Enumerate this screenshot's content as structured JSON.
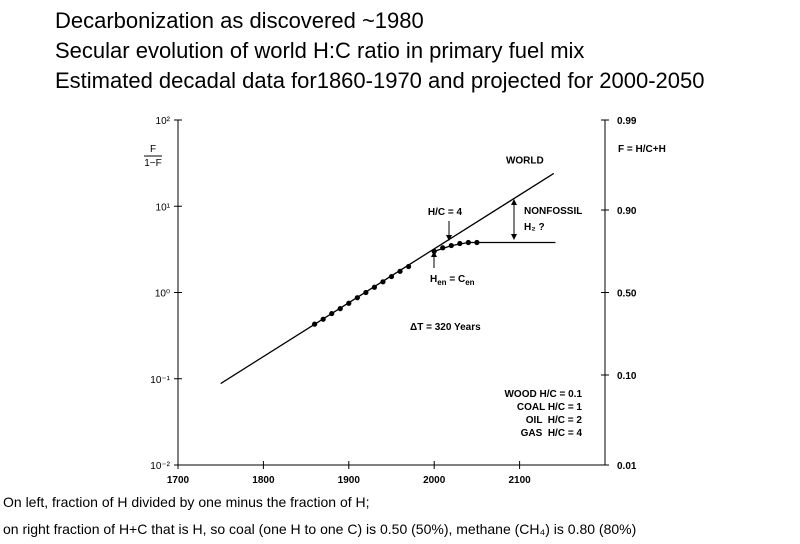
{
  "header": {
    "lines": [
      "Decarbonization as discovered ~1980",
      "Secular evolution of world H:C ratio in primary fuel mix",
      "Estimated decadal data for1860-1970 and projected for 2000-2050"
    ]
  },
  "footer": {
    "lines": [
      "On left, fraction of H divided by one minus the fraction of H;",
      "on right fraction of H+C that is H, so coal (one H to one C) is 0.50 (50%), methane (CH₄) is 0.80 (80%)"
    ]
  },
  "chart_data": {
    "type": "line",
    "ylabel": {
      "numerator": "F",
      "denominator": "1−F"
    },
    "y2label": "F = H/C+H",
    "xlim": [
      1700,
      2200
    ],
    "xticks": [
      1700,
      1800,
      1900,
      2000,
      2100
    ],
    "ylim": [
      0.01,
      100
    ],
    "yscale": "log",
    "yticks": [
      {
        "value": 0.01,
        "label": "10⁻²"
      },
      {
        "value": 0.1,
        "label": "10⁻¹"
      },
      {
        "value": 1,
        "label": "10⁰"
      },
      {
        "value": 10,
        "label": "10¹"
      },
      {
        "value": 100,
        "label": "10²"
      }
    ],
    "y2lim": [
      0.01,
      0.99
    ],
    "y2scale": "logit",
    "y2ticks": [
      0.01,
      {
        "value": 0.1,
        "label": "0.10"
      },
      {
        "value": 0.5,
        "label": "0.50"
      },
      {
        "value": 0.9,
        "label": "0.90"
      },
      0.99
    ],
    "series": [
      {
        "label": "WORLD",
        "color": "#000000",
        "marker": "line",
        "x": [
          1750,
          2140
        ],
        "values": [
          0.088,
          24
        ]
      },
      {
        "color": "#000000",
        "marker": "dot",
        "x": [
          1860,
          1870,
          1880,
          1890,
          1900,
          1910,
          1920,
          1930,
          1940,
          1950,
          1960,
          1970
        ],
        "values": [
          0.43,
          0.49,
          0.57,
          0.65,
          0.75,
          0.87,
          1.0,
          1.15,
          1.33,
          1.53,
          1.76,
          2.0
        ]
      },
      {
        "color": "#000000",
        "marker": "dot",
        "x": [
          2000,
          2010,
          2020,
          2030,
          2040,
          2050
        ],
        "values": [
          3.0,
          3.3,
          3.5,
          3.7,
          3.8,
          3.8
        ]
      },
      {
        "color": "#000000",
        "marker": "line",
        "x": [
          2000,
          2020,
          2040,
          2142
        ],
        "values": [
          3.0,
          3.5,
          3.8,
          3.8
        ]
      }
    ],
    "annotations": {
      "hc4": "H/C = 4",
      "nonfossil": "NONFOSSIL",
      "h2": "H₂ ?",
      "hen": [
        "H",
        "en",
        " = C",
        "en"
      ],
      "dt": "ΔT = 320 Years",
      "legend": [
        "WOOD H/C = 0.1",
        "COAL H/C = 1",
        "OIL  H/C = 2",
        "GAS  H/C = 4"
      ]
    }
  }
}
